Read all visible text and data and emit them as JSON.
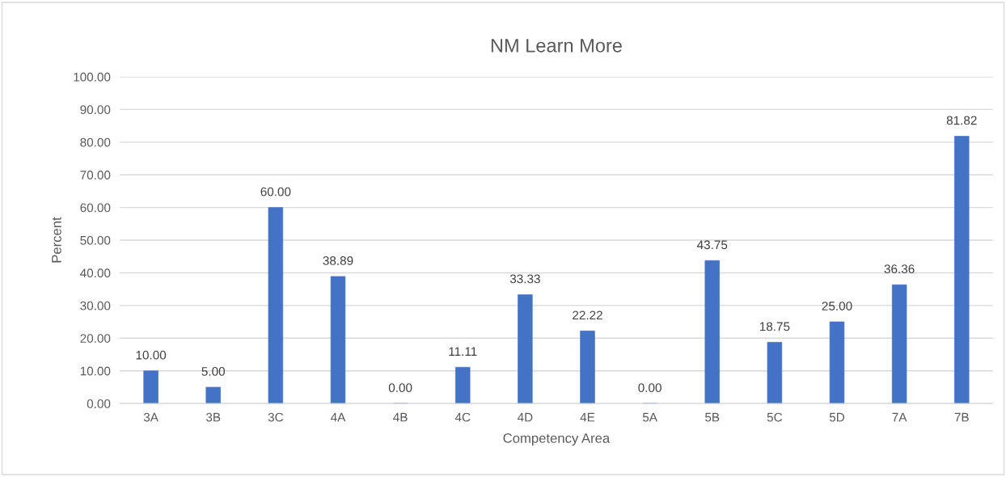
{
  "chart_data": {
    "type": "bar",
    "title": "NM Learn More",
    "xlabel": "Competency Area",
    "ylabel": "Percent",
    "categories": [
      "3A",
      "3B",
      "3C",
      "4A",
      "4B",
      "4C",
      "4D",
      "4E",
      "5A",
      "5B",
      "5C",
      "5D",
      "7A",
      "7B"
    ],
    "values": [
      10,
      5,
      60,
      38.89,
      0,
      11.11,
      33.33,
      22.22,
      0,
      43.75,
      18.75,
      25,
      36.36,
      81.82
    ],
    "value_labels": [
      "10.00",
      "5.00",
      "60.00",
      "38.89",
      "0.00",
      "11.11",
      "33.33",
      "22.22",
      "0.00",
      "43.75",
      "18.75",
      "25.00",
      "36.36",
      "81.82"
    ],
    "color": "#4472c4",
    "ylim": [
      0,
      100
    ],
    "yticks": [
      {
        "value": 0,
        "label": "0.00"
      },
      {
        "value": 10,
        "label": "10.00"
      },
      {
        "value": 20,
        "label": "20.00"
      },
      {
        "value": 30,
        "label": "30.00"
      },
      {
        "value": 40,
        "label": "40.00"
      },
      {
        "value": 50,
        "label": "50.00"
      },
      {
        "value": 60,
        "label": "60.00"
      },
      {
        "value": 70,
        "label": "70.00"
      },
      {
        "value": 80,
        "label": "80.00"
      },
      {
        "value": 90,
        "label": "90.00"
      },
      {
        "value": 100,
        "label": "100.00"
      }
    ],
    "grid": "y",
    "legend": false
  }
}
